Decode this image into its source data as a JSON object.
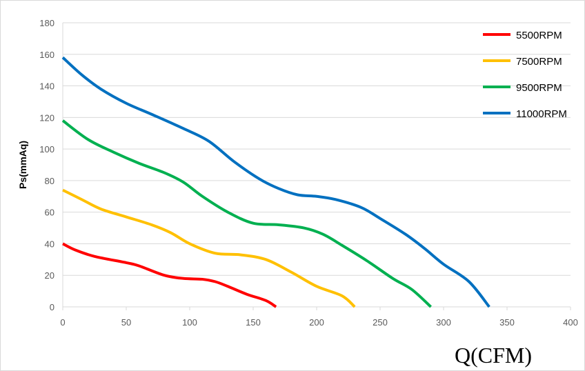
{
  "chart_data": {
    "type": "line",
    "title": "",
    "xlabel": "Q(CFM)",
    "ylabel": "Ps(mmAq)",
    "xlim": [
      0,
      400
    ],
    "ylim": [
      0,
      180
    ],
    "xticks": [
      0,
      50,
      100,
      150,
      200,
      250,
      300,
      350,
      400
    ],
    "yticks": [
      0,
      20,
      40,
      60,
      80,
      100,
      120,
      140,
      160,
      180
    ],
    "grid": "horizontal",
    "legend_position": "top-right",
    "series": [
      {
        "name": "5500RPM",
        "color": "#ff0000",
        "x": [
          0,
          10,
          25,
          50,
          60,
          80,
          95,
          110,
          120,
          130,
          145,
          160,
          168
        ],
        "y": [
          40,
          36,
          32,
          28,
          26,
          20,
          18,
          17.5,
          16,
          13,
          8,
          4,
          0
        ]
      },
      {
        "name": "7500RPM",
        "color": "#ffc000",
        "x": [
          0,
          15,
          30,
          50,
          70,
          85,
          100,
          120,
          140,
          160,
          180,
          200,
          220,
          230
        ],
        "y": [
          74,
          68,
          62,
          57,
          52,
          47,
          40,
          34,
          33,
          30,
          22,
          13,
          7,
          0
        ]
      },
      {
        "name": "9500RPM",
        "color": "#00b050",
        "x": [
          0,
          20,
          40,
          60,
          80,
          95,
          110,
          130,
          150,
          170,
          190,
          205,
          220,
          240,
          260,
          275,
          290
        ],
        "y": [
          118,
          106,
          98,
          91,
          85,
          79,
          70,
          60,
          53,
          52,
          50,
          46,
          39,
          29,
          18,
          11,
          0
        ]
      },
      {
        "name": "11000RPM",
        "color": "#0070c0",
        "x": [
          0,
          15,
          30,
          50,
          70,
          95,
          115,
          135,
          155,
          170,
          185,
          200,
          215,
          235,
          250,
          270,
          285,
          300,
          320,
          336
        ],
        "y": [
          158,
          147,
          138,
          129,
          122,
          113,
          105,
          92,
          81,
          75,
          71,
          70,
          68,
          63,
          56,
          46,
          37,
          27,
          16,
          0
        ]
      }
    ]
  }
}
